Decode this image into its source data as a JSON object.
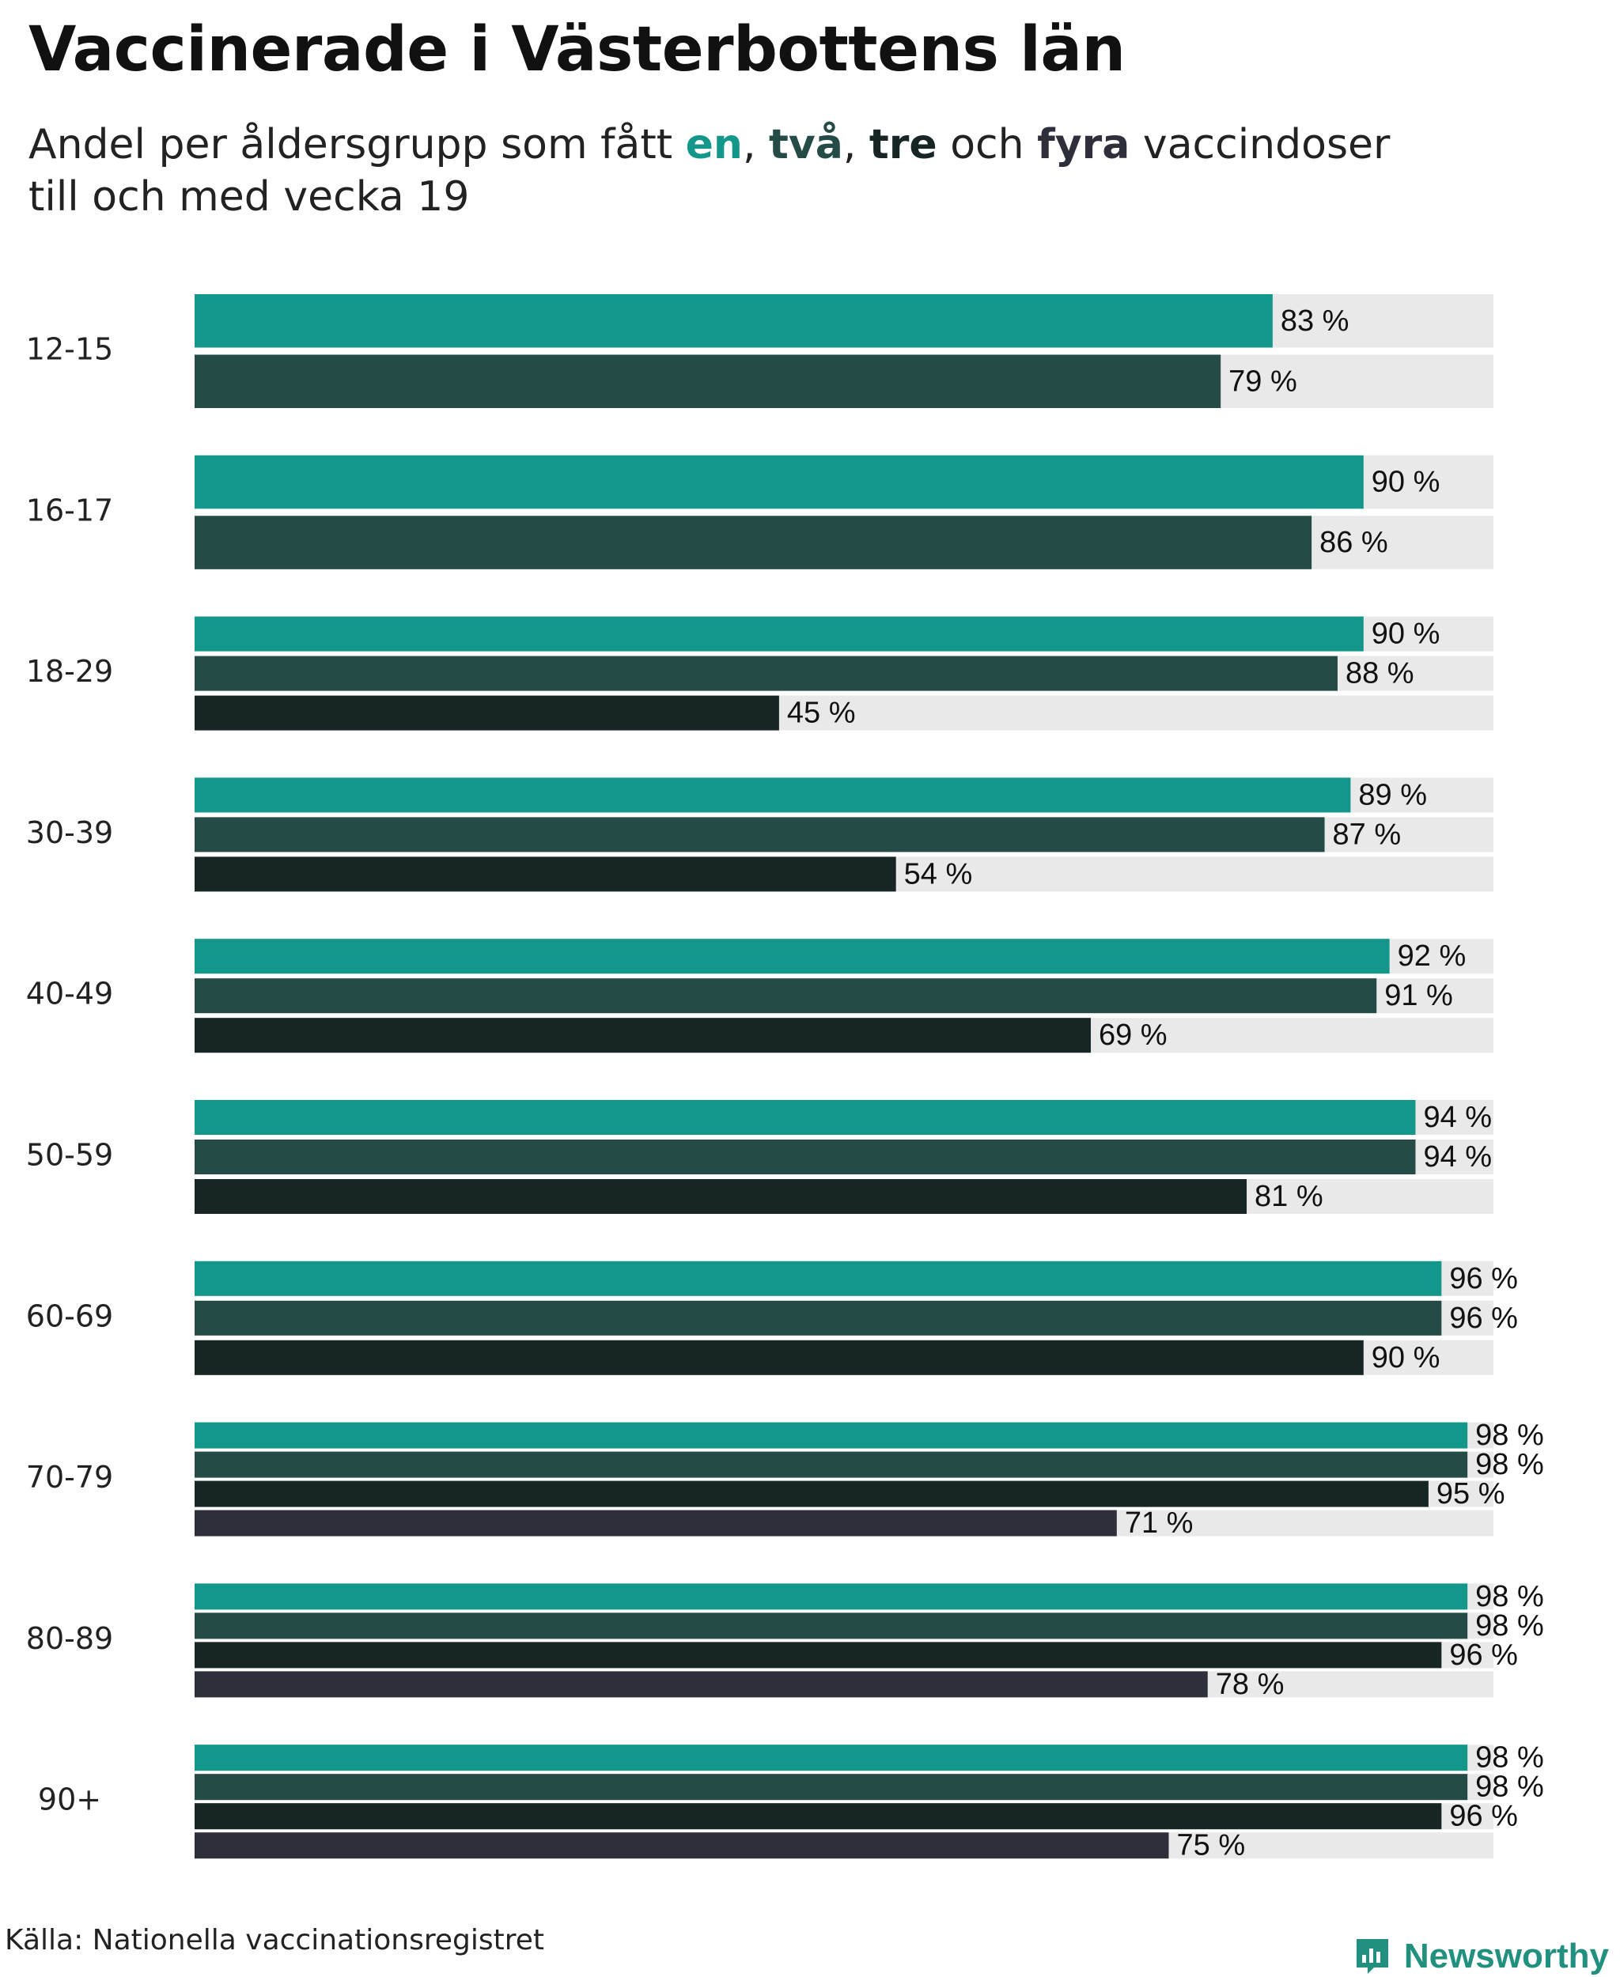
{
  "title": "Vaccinerade i Västerbottens län",
  "subtitle": {
    "before": "Andel per åldersgrupp som fått ",
    "k1": "en",
    "sep1": ", ",
    "k2": "två",
    "sep2": ", ",
    "k3": "tre",
    "mid": " och ",
    "k4": "fyra",
    "after": " vaccindoser",
    "line2": "till och med vecka 19"
  },
  "colors": {
    "en": "#13978a",
    "tva": "#254b47",
    "tre": "#172624",
    "fyra": "#2f2e3b",
    "track": "#e9e9e9"
  },
  "chart_data": {
    "type": "bar",
    "orientation": "horizontal",
    "xlim": [
      0,
      100
    ],
    "value_suffix": " %",
    "categories": [
      "12-15",
      "16-17",
      "18-29",
      "30-39",
      "40-49",
      "50-59",
      "60-69",
      "70-79",
      "80-89",
      "90+"
    ],
    "series": [
      {
        "name": "en",
        "color": "#13978a",
        "values": [
          83,
          90,
          90,
          89,
          92,
          94,
          96,
          98,
          98,
          98
        ]
      },
      {
        "name": "två",
        "color": "#254b47",
        "values": [
          79,
          86,
          88,
          87,
          91,
          94,
          96,
          98,
          98,
          98
        ]
      },
      {
        "name": "tre",
        "color": "#172624",
        "values": [
          null,
          null,
          45,
          54,
          69,
          81,
          90,
          95,
          96,
          96
        ]
      },
      {
        "name": "fyra",
        "color": "#2f2e3b",
        "values": [
          null,
          null,
          null,
          null,
          null,
          null,
          null,
          71,
          78,
          75
        ]
      }
    ]
  },
  "footer": {
    "source": "Källa: Nationella vaccinationsregistret",
    "brand": "Newsworthy"
  }
}
